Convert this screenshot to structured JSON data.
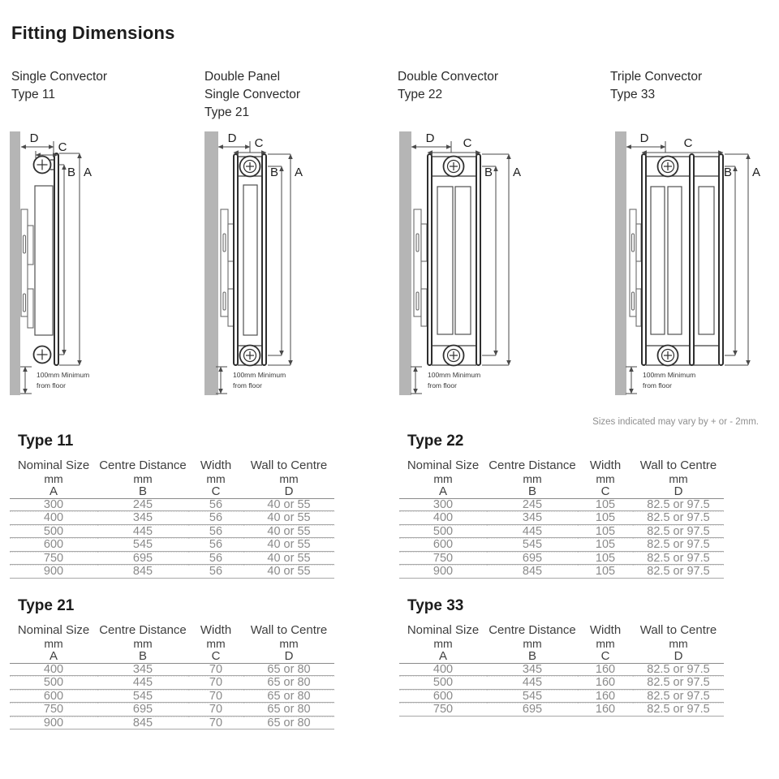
{
  "title": "Fitting Dimensions",
  "note": "Sizes indicated may vary by + or - 2mm.",
  "colors": {
    "wall": "#b5b5b5",
    "line": "#2f2f2f",
    "dim": "#4a4a4a"
  },
  "sections": [
    {
      "heading_lines": [
        "Single Convector",
        "Type 11"
      ]
    },
    {
      "heading_lines": [
        "Double Panel",
        "Single Convector",
        "Type 21"
      ]
    },
    {
      "heading_lines": [
        "Double Convector",
        "Type 22"
      ]
    },
    {
      "heading_lines": [
        "Triple Convector",
        "Type 33"
      ]
    }
  ],
  "diagram_labels": {
    "a": "A",
    "b": "B",
    "c": "C",
    "d": "D",
    "floor_line1": "100mm Minimum",
    "floor_line2": "from floor"
  },
  "tables": [
    {
      "title": "Type 11",
      "columns": [
        {
          "name": "Nominal Size",
          "unit": "mm",
          "letter": "A"
        },
        {
          "name": "Centre Distance",
          "unit": "mm",
          "letter": "B"
        },
        {
          "name": "Width",
          "unit": "mm",
          "letter": "C"
        },
        {
          "name": "Wall to Centre",
          "unit": "mm",
          "letter": "D"
        }
      ],
      "rows": [
        [
          "300",
          "245",
          "56",
          "40 or 55"
        ],
        [
          "400",
          "345",
          "56",
          "40 or 55"
        ],
        [
          "500",
          "445",
          "56",
          "40 or 55"
        ],
        [
          "600",
          "545",
          "56",
          "40 or 55"
        ],
        [
          "750",
          "695",
          "56",
          "40 or 55"
        ],
        [
          "900",
          "845",
          "56",
          "40 or 55"
        ]
      ]
    },
    {
      "title": "Type 22",
      "columns": [
        {
          "name": "Nominal Size",
          "unit": "mm",
          "letter": "A"
        },
        {
          "name": "Centre Distance",
          "unit": "mm",
          "letter": "B"
        },
        {
          "name": "Width",
          "unit": "mm",
          "letter": "C"
        },
        {
          "name": "Wall to Centre",
          "unit": "mm",
          "letter": "D"
        }
      ],
      "rows": [
        [
          "300",
          "245",
          "105",
          "82.5 or 97.5"
        ],
        [
          "400",
          "345",
          "105",
          "82.5 or 97.5"
        ],
        [
          "500",
          "445",
          "105",
          "82.5 or 97.5"
        ],
        [
          "600",
          "545",
          "105",
          "82.5 or 97.5"
        ],
        [
          "750",
          "695",
          "105",
          "82.5 or 97.5"
        ],
        [
          "900",
          "845",
          "105",
          "82.5 or 97.5"
        ]
      ]
    },
    {
      "title": "Type 21",
      "columns": [
        {
          "name": "Nominal Size",
          "unit": "mm",
          "letter": "A"
        },
        {
          "name": "Centre Distance",
          "unit": "mm",
          "letter": "B"
        },
        {
          "name": "Width",
          "unit": "mm",
          "letter": "C"
        },
        {
          "name": "Wall to Centre",
          "unit": "mm",
          "letter": "D"
        }
      ],
      "rows": [
        [
          "400",
          "345",
          "70",
          "65 or 80"
        ],
        [
          "500",
          "445",
          "70",
          "65 or 80"
        ],
        [
          "600",
          "545",
          "70",
          "65 or 80"
        ],
        [
          "750",
          "695",
          "70",
          "65 or 80"
        ],
        [
          "900",
          "845",
          "70",
          "65 or 80"
        ]
      ]
    },
    {
      "title": "Type 33",
      "columns": [
        {
          "name": "Nominal Size",
          "unit": "mm",
          "letter": "A"
        },
        {
          "name": "Centre Distance",
          "unit": "mm",
          "letter": "B"
        },
        {
          "name": "Width",
          "unit": "mm",
          "letter": "C"
        },
        {
          "name": "Wall to Centre",
          "unit": "mm",
          "letter": "D"
        }
      ],
      "rows": [
        [
          "400",
          "345",
          "160",
          "82.5 or 97.5"
        ],
        [
          "500",
          "445",
          "160",
          "82.5 or 97.5"
        ],
        [
          "600",
          "545",
          "160",
          "82.5 or 97.5"
        ],
        [
          "750",
          "695",
          "160",
          "82.5 or 97.5"
        ]
      ]
    }
  ]
}
